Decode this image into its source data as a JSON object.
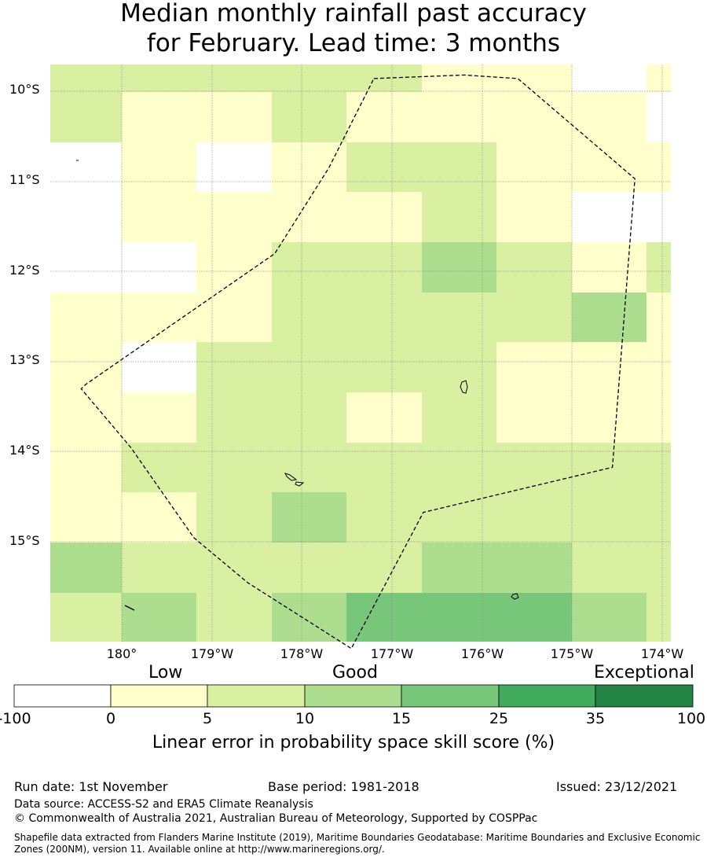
{
  "title_line1": "Median monthly rainfall past accuracy",
  "title_line2": "for February. Lead time: 3 months",
  "chart_data": {
    "type": "heatmap",
    "title": "Median monthly rainfall past accuracy for February. Lead time: 3 months",
    "lon_range": [
      -179.8,
      -173.9
    ],
    "lat_range": [
      -16.1,
      -9.7
    ],
    "cols": 9,
    "rows": 12,
    "lat_ticks": [
      "10°S",
      "11°S",
      "12°S",
      "13°S",
      "14°S",
      "15°S"
    ],
    "lon_ticks": [
      "180°",
      "179°W",
      "178°W",
      "177°W",
      "176°W",
      "175°W",
      "174°W"
    ],
    "colorbar": {
      "bounds": [
        "-100",
        "0",
        "5",
        "10",
        "15",
        "25",
        "35",
        "100"
      ],
      "colors": [
        "#ffffff",
        "#ffffcc",
        "#d9f0a3",
        "#addd8e",
        "#78c679",
        "#41ab5d",
        "#238443"
      ],
      "categories": [
        "Low",
        "Good",
        "Exceptional"
      ],
      "label": "Linear error in probability space skill score (%)"
    },
    "grid_classes": [
      [
        2,
        2,
        2,
        2,
        2,
        1,
        1,
        0,
        1
      ],
      [
        2,
        1,
        1,
        2,
        1,
        1,
        1,
        1,
        0
      ],
      [
        0,
        1,
        0,
        1,
        2,
        2,
        1,
        1,
        1
      ],
      [
        0,
        1,
        1,
        1,
        1,
        2,
        1,
        0,
        0
      ],
      [
        0,
        0,
        1,
        2,
        2,
        3,
        2,
        1,
        2
      ],
      [
        1,
        1,
        1,
        2,
        2,
        2,
        2,
        3,
        1
      ],
      [
        1,
        0,
        2,
        2,
        2,
        2,
        1,
        1,
        1
      ],
      [
        1,
        1,
        2,
        2,
        1,
        2,
        1,
        1,
        1
      ],
      [
        1,
        2,
        2,
        2,
        2,
        2,
        2,
        2,
        2
      ],
      [
        1,
        1,
        2,
        3,
        2,
        2,
        2,
        2,
        2
      ],
      [
        3,
        2,
        2,
        2,
        2,
        3,
        3,
        2,
        2
      ],
      [
        2,
        3,
        2,
        3,
        4,
        4,
        4,
        3,
        2
      ]
    ],
    "eez_boundary": [
      [
        -177.2,
        -9.86
      ],
      [
        -176.2,
        -9.82
      ],
      [
        -175.6,
        -9.86
      ],
      [
        -174.3,
        -10.97
      ],
      [
        -174.55,
        -14.17
      ],
      [
        -176.65,
        -14.67
      ],
      [
        -177.45,
        -16.18
      ],
      [
        -178.6,
        -15.45
      ],
      [
        -179.2,
        -14.95
      ],
      [
        -179.9,
        -13.95
      ],
      [
        -180.45,
        -13.3
      ],
      [
        -180.4,
        -13.25
      ],
      [
        -178.3,
        -11.8
      ],
      [
        -177.7,
        -10.85
      ],
      [
        -177.2,
        -9.86
      ]
    ]
  },
  "footer": {
    "run_date": "Run date: 1st November",
    "base_period": "Base period: 1981-2018",
    "issued": "Issued: 23/12/2021",
    "data_source": "Data source: ACCESS-S2 and ERA5 Climate Reanalysis",
    "copyright": "© Commonwealth of Australia 2021, Australian Bureau of Meteorology, Supported by COSPPac",
    "shapefile_line1": "Shapefile data extracted from Flanders Marine Institute (2019), Maritime Boundaries Geodatabase: Maritime Boundaries and Exclusive Economic",
    "shapefile_line2": "Zones (200NM), version 11. Available online at http://www.marineregions.org/."
  }
}
